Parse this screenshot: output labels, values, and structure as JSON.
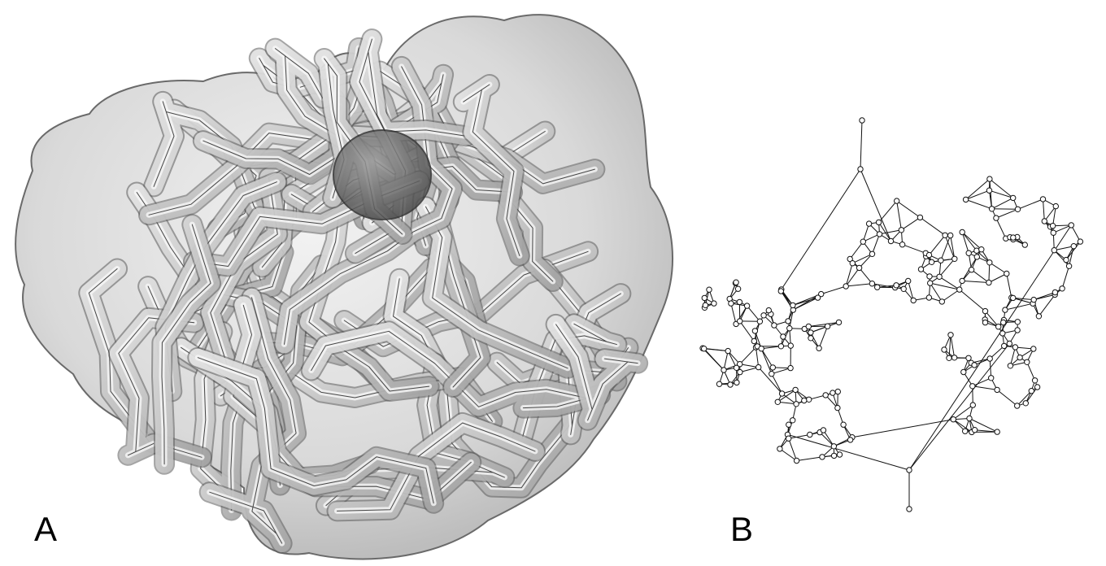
{
  "panel_a": {
    "label": "A",
    "description_kind": "3d-render",
    "colors": {
      "surface": "#bfbfbf",
      "outline": "#3a3a3a",
      "core": "#7a7a7a"
    }
  },
  "panel_b": {
    "label": "B",
    "colors": {
      "edge": "#111111",
      "node_fill": "#ffffff",
      "node_stroke": "#111111"
    }
  }
}
